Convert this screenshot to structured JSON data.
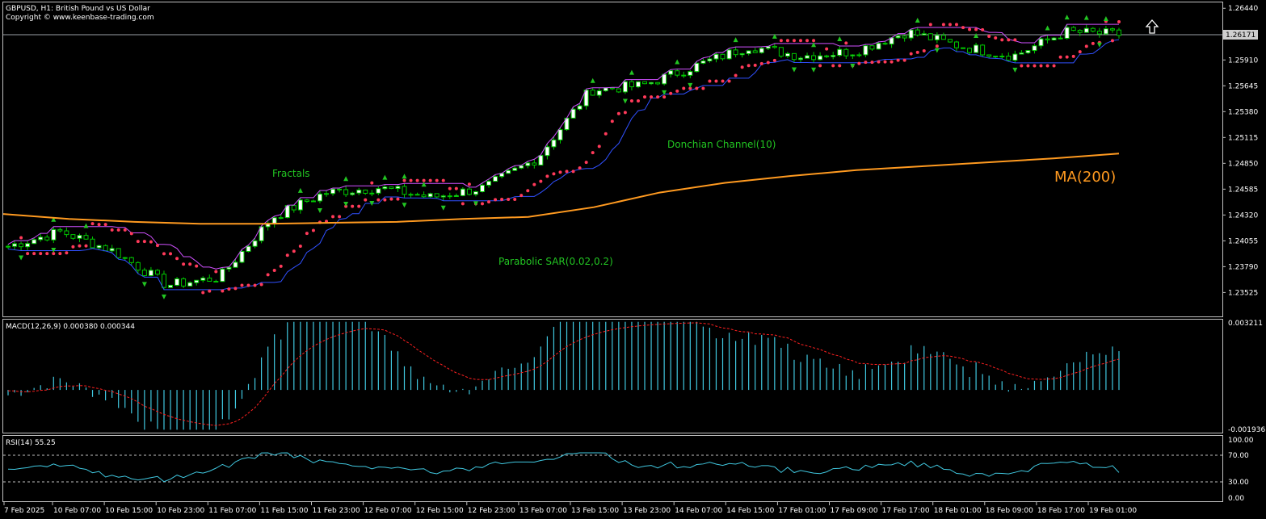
{
  "header": {
    "symbol_line": "GBPUSD, H1:  British Pound vs US Dollar",
    "copyright": "Copyright © www.keenbase-trading.com"
  },
  "price_panel": {
    "current_price": "1.26171",
    "y_ticks": [
      "1.26440",
      "1.26171",
      "1.25910",
      "1.25645",
      "1.25380",
      "1.25115",
      "1.24850",
      "1.24585",
      "1.24320",
      "1.24055",
      "1.23790",
      "1.23525"
    ],
    "ylim": [
      1.2328,
      1.265
    ],
    "labels": {
      "fractals": "Fractals",
      "donchian": "Donchian Channel(10)",
      "sar": "Parabolic SAR(0.02,0.2)",
      "ma": "MA(200)"
    },
    "signal": "up-arrow-icon"
  },
  "macd_panel": {
    "label": "MACD(12,26,9) 0.000380 0.000344",
    "max_label": "0.003211",
    "min_label": "-0.001936"
  },
  "rsi_panel": {
    "label": "RSI(14) 55.25",
    "levels": [
      "100.00",
      "70.00",
      "30.00",
      "0.00"
    ]
  },
  "x_axis": {
    "labels": [
      "7 Feb 2025",
      "10 Feb 07:00",
      "10 Feb 15:00",
      "10 Feb 23:00",
      "11 Feb 07:00",
      "11 Feb 15:00",
      "11 Feb 23:00",
      "12 Feb 07:00",
      "12 Feb 15:00",
      "12 Feb 23:00",
      "13 Feb 07:00",
      "13 Feb 15:00",
      "13 Feb 23:00",
      "14 Feb 07:00",
      "14 Feb 15:00",
      "17 Feb 01:00",
      "17 Feb 09:00",
      "17 Feb 17:00",
      "18 Feb 01:00",
      "18 Feb 09:00",
      "18 Feb 17:00",
      "19 Feb 01:00"
    ]
  },
  "colors": {
    "background": "#000000",
    "grid_border": "#c0c0c0",
    "candle_up": "#00c800",
    "candle_body_up": "#ffffff",
    "candle_body_down": "#000000",
    "sar": "#ff3a5a",
    "donchian_upper": "#d050ff",
    "donchian_lower": "#3050ff",
    "ma": "#ff9a20",
    "macd_hist": "#40c8e0",
    "macd_signal": "#ff2020",
    "rsi": "#40c8e0",
    "label_green": "#22c522",
    "text": "#ffffff"
  },
  "chart_data": {
    "type": "candlestick",
    "symbol": "GBPUSD",
    "timeframe": "H1",
    "price_keypoints": [
      {
        "t": "7 Feb 2025",
        "close": 1.24
      },
      {
        "t": "10 Feb 07:00",
        "close": 1.2415
      },
      {
        "t": "10 Feb 15:00",
        "close": 1.2395
      },
      {
        "t": "10 Feb 23:00",
        "close": 1.236
      },
      {
        "t": "11 Feb 07:00",
        "close": 1.2368
      },
      {
        "t": "11 Feb 15:00",
        "close": 1.243
      },
      {
        "t": "11 Feb 23:00",
        "close": 1.2455
      },
      {
        "t": "12 Feb 07:00",
        "close": 1.246
      },
      {
        "t": "12 Feb 15:00",
        "close": 1.245
      },
      {
        "t": "12 Feb 23:00",
        "close": 1.246
      },
      {
        "t": "13 Feb 07:00",
        "close": 1.249
      },
      {
        "t": "13 Feb 15:00",
        "close": 1.256
      },
      {
        "t": "13 Feb 23:00",
        "close": 1.2565
      },
      {
        "t": "14 Feb 07:00",
        "close": 1.2585
      },
      {
        "t": "14 Feb 15:00",
        "close": 1.2605
      },
      {
        "t": "17 Feb 01:00",
        "close": 1.2595
      },
      {
        "t": "17 Feb 09:00",
        "close": 1.26
      },
      {
        "t": "17 Feb 17:00",
        "close": 1.262
      },
      {
        "t": "18 Feb 01:00",
        "close": 1.2605
      },
      {
        "t": "18 Feb 09:00",
        "close": 1.2595
      },
      {
        "t": "18 Feb 17:00",
        "close": 1.262
      },
      {
        "t": "19 Feb 01:00",
        "close": 1.26171
      }
    ],
    "ma200": [
      1.2433,
      1.2428,
      1.2425,
      1.2423,
      1.2423,
      1.2424,
      1.2425,
      1.2428,
      1.243,
      1.244,
      1.2455,
      1.2465,
      1.2472,
      1.2478,
      1.2482,
      1.2486,
      1.249,
      1.2495
    ],
    "macd_range": [
      -0.001936,
      0.003211
    ],
    "rsi_levels": [
      30,
      70
    ]
  }
}
